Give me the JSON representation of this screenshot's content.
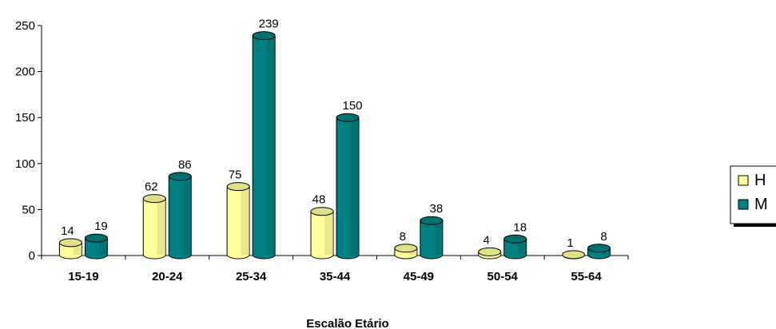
{
  "chart_data": {
    "type": "bar",
    "title": "",
    "xlabel": "Escalão Etário",
    "ylabel": "",
    "categories": [
      "15-19",
      "20-24",
      "25-34",
      "35-44",
      "45-49",
      "50-54",
      "55-64"
    ],
    "series": [
      {
        "name": "H",
        "values": [
          14,
          62,
          75,
          48,
          8,
          4,
          1
        ],
        "color": "#ffff99"
      },
      {
        "name": "M",
        "values": [
          19,
          86,
          239,
          150,
          38,
          18,
          8
        ],
        "color": "#008080"
      }
    ],
    "ylim": [
      0,
      250
    ],
    "yticks": [
      0,
      50,
      100,
      150,
      200,
      250
    ],
    "grid": false,
    "legend_position": "right"
  }
}
